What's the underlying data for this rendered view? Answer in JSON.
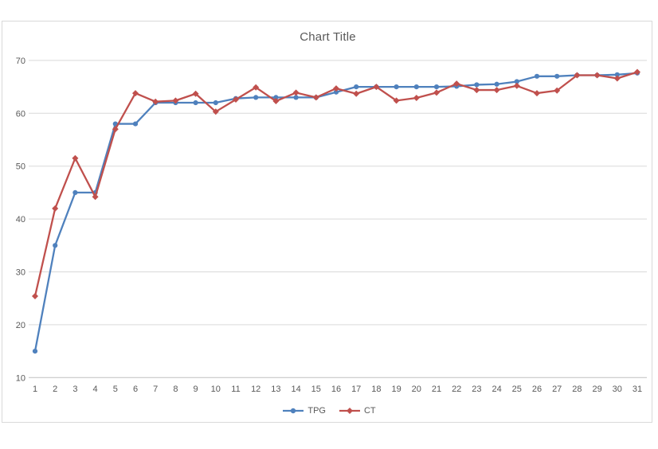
{
  "chart": {
    "title": "Chart Title",
    "colors": {
      "frame_border": "#d9d9d9",
      "gridline": "#d9d9d9",
      "axis_line": "#bfbfbf",
      "text": "#595959",
      "background": "#ffffff"
    }
  },
  "legend": {
    "items": [
      {
        "label": "TPG",
        "color": "#4f81bd",
        "marker": "circle"
      },
      {
        "label": "CT",
        "color": "#c0504d",
        "marker": "diamond"
      }
    ]
  },
  "chart_data": {
    "type": "line",
    "title": "Chart Title",
    "x": [
      1,
      2,
      3,
      4,
      5,
      6,
      7,
      8,
      9,
      10,
      11,
      12,
      13,
      14,
      15,
      16,
      17,
      18,
      19,
      20,
      21,
      22,
      23,
      24,
      25,
      26,
      27,
      28,
      29,
      30,
      31
    ],
    "series": [
      {
        "name": "TPG",
        "color": "#4f81bd",
        "marker": "circle",
        "values": [
          15,
          35,
          45,
          45,
          58,
          58,
          62,
          62,
          62,
          62,
          62.8,
          63,
          63,
          63,
          63,
          64,
          65,
          65,
          65,
          65,
          65,
          65.1,
          65.4,
          65.5,
          66,
          67,
          67,
          67.2,
          67.2,
          67.3,
          67.6
        ]
      },
      {
        "name": "CT",
        "color": "#c0504d",
        "marker": "diamond",
        "values": [
          25.4,
          42,
          51.5,
          44.2,
          57,
          63.8,
          62.2,
          62.4,
          63.7,
          60.3,
          62.6,
          64.9,
          62.3,
          63.9,
          63,
          64.7,
          63.7,
          65,
          62.4,
          62.9,
          63.9,
          65.6,
          64.4,
          64.4,
          65.2,
          63.8,
          64.3,
          67.2,
          67.2,
          66.6,
          67.8
        ]
      }
    ],
    "xlabel": "",
    "ylabel": "",
    "ylim": [
      10,
      71
    ],
    "yticks": [
      10,
      20,
      30,
      40,
      50,
      60,
      70
    ],
    "grid": true,
    "legend_position": "bottom"
  }
}
